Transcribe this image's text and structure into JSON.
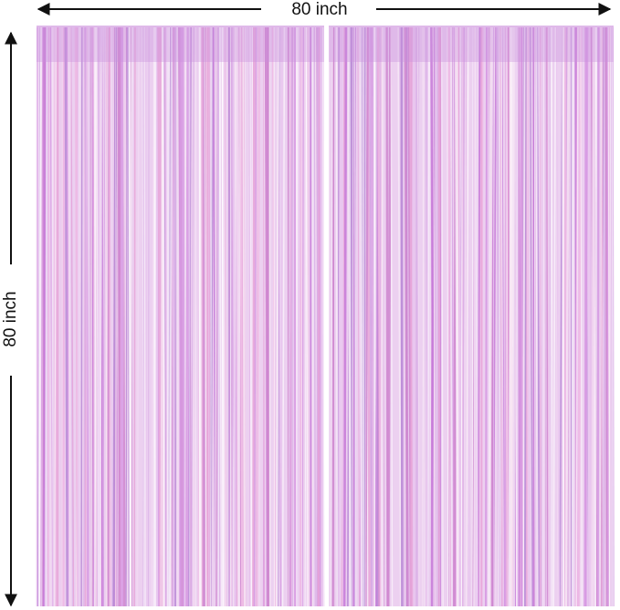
{
  "dimensions": {
    "width": "80 inch",
    "height": "80 inch"
  }
}
